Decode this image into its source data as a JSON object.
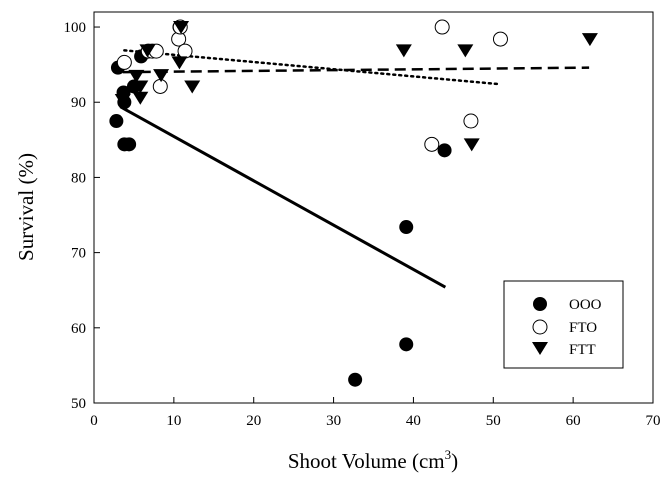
{
  "chart_data": {
    "type": "scatter",
    "title": "",
    "xlabel": "Shoot Volume (cm",
    "xlabel_superscript": "3",
    "xlabel_suffix": ")",
    "ylabel": "Survival (%)",
    "xlim": [
      0,
      70
    ],
    "ylim": [
      50,
      102
    ],
    "x_ticks": [
      0,
      10,
      20,
      30,
      40,
      50,
      60,
      70
    ],
    "y_ticks": [
      50,
      60,
      70,
      80,
      90,
      100
    ],
    "grid": false,
    "legend_position": "bottom-right",
    "series": [
      {
        "name": "OOO",
        "marker": "filled-circle",
        "color": "#000000",
        "x": [
          2.8,
          3.0,
          3.7,
          3.8,
          3.8,
          4.4,
          5.0,
          5.9,
          10.7,
          32.7,
          39.1,
          39.1,
          43.9
        ],
        "y": [
          87.5,
          94.6,
          91.3,
          90.0,
          84.4,
          84.4,
          92.1,
          96.1,
          100.0,
          53.1,
          73.4,
          57.8,
          83.6
        ],
        "trendline": {
          "style": "solid",
          "x": [
            3.3,
            44.0
          ],
          "y": [
            89.4,
            65.4
          ]
        }
      },
      {
        "name": "FTO",
        "marker": "open-circle",
        "color": "#000000",
        "x": [
          3.8,
          6.8,
          7.3,
          7.8,
          8.3,
          10.6,
          10.8,
          11.4,
          42.3,
          43.6,
          47.2,
          50.9
        ],
        "y": [
          95.3,
          96.8,
          96.8,
          96.8,
          92.1,
          98.4,
          100.0,
          96.8,
          84.4,
          100.0,
          87.5,
          98.4
        ],
        "trendline": {
          "style": "dotted",
          "x": [
            3.8,
            50.8
          ],
          "y": [
            96.9,
            92.4
          ]
        }
      },
      {
        "name": "FTT",
        "marker": "filled-triangle-down",
        "color": "#000000",
        "x": [
          3.6,
          5.3,
          5.8,
          5.8,
          6.7,
          8.4,
          10.7,
          10.9,
          12.3,
          38.8,
          46.5,
          47.3,
          62.1
        ],
        "y": [
          90.3,
          93.5,
          90.6,
          92.1,
          96.9,
          93.6,
          95.3,
          100.0,
          92.1,
          96.9,
          96.9,
          84.4,
          98.4
        ],
        "trendline": {
          "style": "dashed",
          "x": [
            3.6,
            62.0
          ],
          "y": [
            94.0,
            94.6
          ]
        }
      }
    ]
  }
}
